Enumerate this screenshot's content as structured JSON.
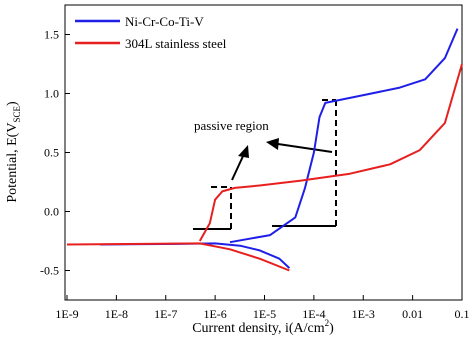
{
  "chart_data": {
    "type": "line",
    "xlabel": {
      "text": "Current density, i(A/cm",
      "sup": "2",
      "end": ")"
    },
    "ylabel": {
      "text": "Potential, E(V",
      "sub": "SCE",
      "end": ")"
    },
    "annotation": "passive region",
    "xscale": "log",
    "xlim": [
      1e-09,
      0.1
    ],
    "xticks": [
      {
        "value": 1e-09,
        "label": "1E-9"
      },
      {
        "value": 1e-08,
        "label": "1E-8"
      },
      {
        "value": 1e-07,
        "label": "1E-7"
      },
      {
        "value": 1e-06,
        "label": "1E-6"
      },
      {
        "value": 1e-05,
        "label": "1E-5"
      },
      {
        "value": 0.0001,
        "label": "1E-4"
      },
      {
        "value": 0.001,
        "label": "1E-3"
      },
      0.01,
      0.1
    ],
    "ylim": [
      -0.75,
      1.75
    ],
    "yticks": [
      -0.5,
      {
        "value": 0,
        "label": "0.0"
      },
      0.5,
      {
        "value": 1,
        "label": "1.0"
      },
      1.5
    ],
    "legend": "upper left",
    "series": [
      {
        "name": "Ni-Cr-Co-Ti-V",
        "color": "#1f1fe8",
        "x": [
          4.7e-09,
          1.9e-07,
          1e-06,
          3.2e-06,
          8e-06,
          2e-05,
          3.2e-05,
          null,
          2e-06,
          1.3e-05,
          4.2e-05,
          6.6e-05,
          0.0001,
          0.00013,
          0.00017,
          0.00085,
          0.0055,
          0.018,
          0.045,
          0.081
        ],
        "values": [
          -0.28,
          -0.275,
          -0.27,
          -0.29,
          -0.33,
          -0.4,
          -0.48,
          null,
          -0.26,
          -0.2,
          -0.05,
          0.2,
          0.5,
          0.8,
          0.92,
          0.98,
          1.05,
          1.12,
          1.3,
          1.55
        ]
      },
      {
        "name": "304L stainless steel",
        "color": "#e81f1f",
        "x": [
          1e-09,
          4.9e-07,
          2e-06,
          8e-06,
          3.2e-05,
          null,
          4.9e-07,
          7.8e-07,
          1e-06,
          1.4e-06,
          2.5e-06,
          8e-06,
          5.2e-05,
          0.00054,
          0.0035,
          0.014,
          0.045,
          0.1
        ],
        "values": [
          -0.28,
          -0.27,
          -0.32,
          -0.4,
          -0.5,
          null,
          -0.25,
          -0.1,
          0.1,
          0.17,
          0.2,
          0.22,
          0.26,
          0.32,
          0.4,
          0.52,
          0.75,
          1.25
        ]
      }
    ]
  }
}
